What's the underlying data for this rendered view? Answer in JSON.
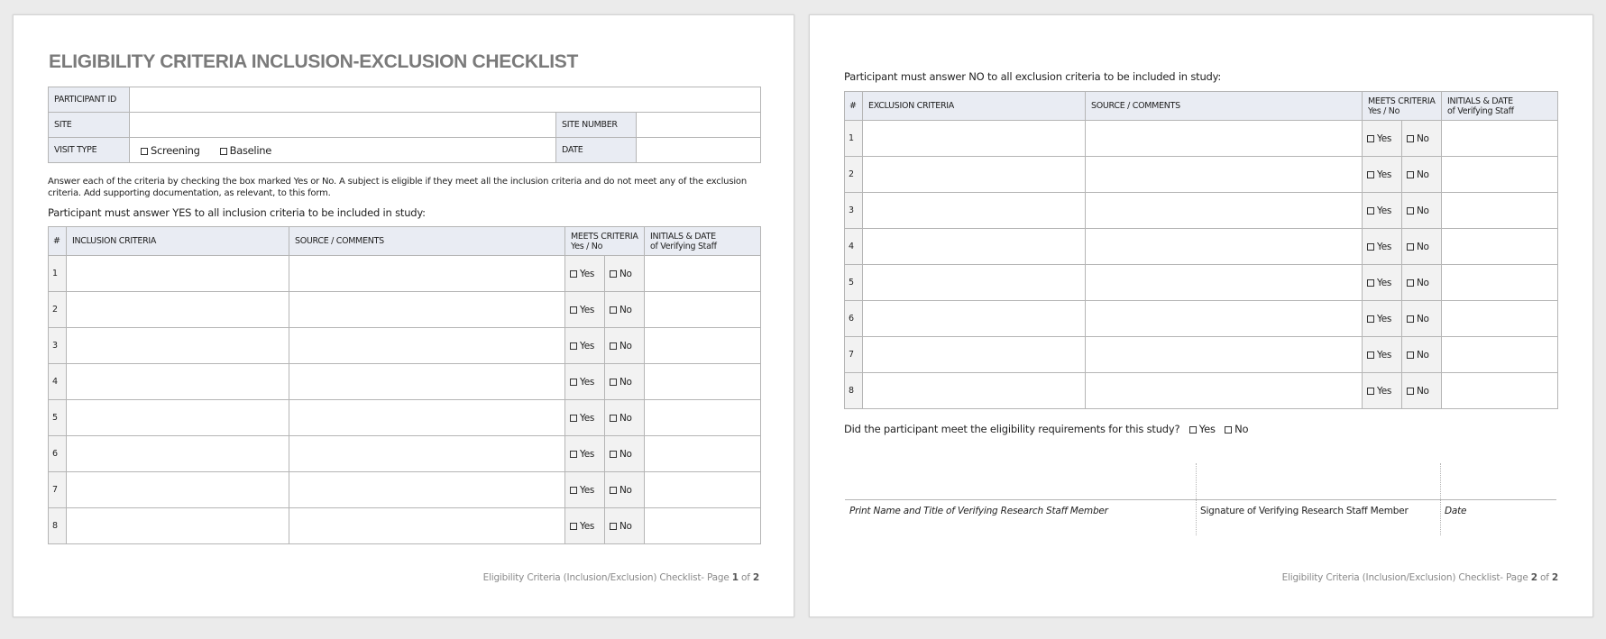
{
  "page1": {
    "title": "ELIGIBILITY CRITERIA INCLUSION-EXCLUSION CHECKLIST",
    "info": {
      "participant_id": "PARTICIPANT ID",
      "site": "SITE",
      "site_number": "SITE NUMBER",
      "visit_type": "VISIT TYPE",
      "date": "DATE",
      "screening": "Screening",
      "baseline": "Baseline"
    },
    "instructions": "Answer each of the criteria by checking the box marked Yes or No. A subject is eligible if they meet all the inclusion criteria and do not meet any of the exclusion criteria. Add supporting documentation, as relevant, to this form.",
    "intro": "Participant must answer YES to all inclusion criteria to be included in study:",
    "table": {
      "h_num": "#",
      "h_criteria": "INCLUSION CRITERIA",
      "h_source": "SOURCE / COMMENTS",
      "h_meets1": "MEETS CRITERIA",
      "h_meets2": "Yes / No",
      "h_init1": "INITIALS & DATE",
      "h_init2": "of Verifying Staff",
      "rows": [
        "1",
        "2",
        "3",
        "4",
        "5",
        "6",
        "7",
        "8"
      ],
      "yes": "Yes",
      "no": "No"
    },
    "footer": {
      "text": "Eligibility Criteria (Inclusion/Exclusion) Checklist- Page ",
      "page": "1",
      "of": " of ",
      "total": "2"
    }
  },
  "page2": {
    "intro": "Participant must answer NO to all exclusion criteria to be included in study:",
    "table": {
      "h_num": "#",
      "h_criteria": "EXCLUSION CRITERIA",
      "h_source": "SOURCE / COMMENTS",
      "h_meets1": "MEETS CRITERIA",
      "h_meets2": "Yes / No",
      "h_init1": "INITIALS & DATE",
      "h_init2": "of Verifying Staff",
      "rows": [
        "1",
        "2",
        "3",
        "4",
        "5",
        "6",
        "7",
        "8"
      ],
      "yes": "Yes",
      "no": "No"
    },
    "question": "Did the participant meet the eligibility requirements for this study?",
    "q_yes": "Yes",
    "q_no": "No",
    "sig_name": "Print Name and Title of Verifying Research Staff Member",
    "sig_signature": "Signature of Verifying Research Staff Member",
    "sig_date": "Date",
    "footer": {
      "text": "Eligibility Criteria (Inclusion/Exclusion) Checklist- Page ",
      "page": "2",
      "of": " of ",
      "total": "2"
    }
  }
}
